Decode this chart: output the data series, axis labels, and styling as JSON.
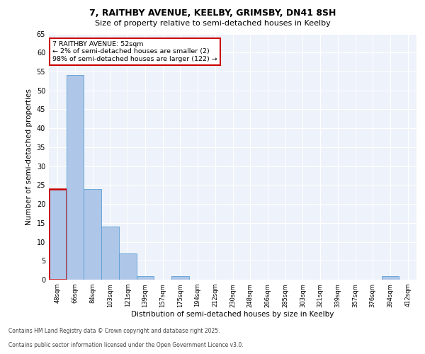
{
  "title_line1": "7, RAITHBY AVENUE, KEELBY, GRIMSBY, DN41 8SH",
  "title_line2": "Size of property relative to semi-detached houses in Keelby",
  "xlabel": "Distribution of semi-detached houses by size in Keelby",
  "ylabel": "Number of semi-detached properties",
  "categories": [
    "48sqm",
    "66sqm",
    "84sqm",
    "103sqm",
    "121sqm",
    "139sqm",
    "157sqm",
    "175sqm",
    "194sqm",
    "212sqm",
    "230sqm",
    "248sqm",
    "266sqm",
    "285sqm",
    "303sqm",
    "321sqm",
    "339sqm",
    "357sqm",
    "376sqm",
    "394sqm",
    "412sqm"
  ],
  "values": [
    24,
    54,
    24,
    14,
    7,
    1,
    0,
    1,
    0,
    0,
    0,
    0,
    0,
    0,
    0,
    0,
    0,
    0,
    0,
    1,
    0
  ],
  "bar_color": "#aec6e8",
  "bar_edge_color": "#5a9fd4",
  "highlight_bar_index": 0,
  "highlight_bar_edge_color": "#cc0000",
  "annotation_box_text": "7 RAITHBY AVENUE: 52sqm\n← 2% of semi-detached houses are smaller (2)\n98% of semi-detached houses are larger (122) →",
  "ylim": [
    0,
    65
  ],
  "yticks": [
    0,
    5,
    10,
    15,
    20,
    25,
    30,
    35,
    40,
    45,
    50,
    55,
    60,
    65
  ],
  "background_color": "#eef2fa",
  "grid_color": "#ffffff",
  "footer_line1": "Contains HM Land Registry data © Crown copyright and database right 2025.",
  "footer_line2": "Contains public sector information licensed under the Open Government Licence v3.0."
}
